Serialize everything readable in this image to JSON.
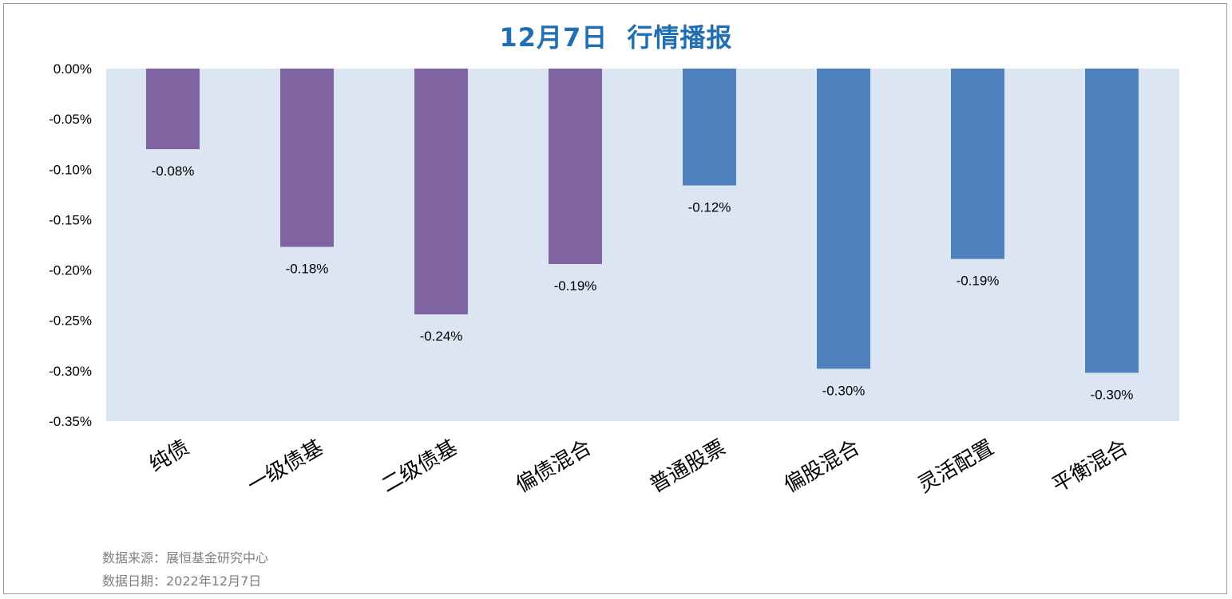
{
  "chart_data": {
    "type": "bar",
    "title": "12月7日  行情播报",
    "categories": [
      "纯债",
      "一级债基",
      "二级债基",
      "偏债混合",
      "普通股票",
      "偏股混合",
      "灵活配置",
      "平衡混合"
    ],
    "values": [
      -0.0008,
      -0.00177,
      -0.00244,
      -0.00194,
      -0.00116,
      -0.00298,
      -0.00189,
      -0.00302
    ],
    "value_labels": [
      "-0.08%",
      "-0.18%",
      "-0.24%",
      "-0.19%",
      "-0.12%",
      "-0.30%",
      "-0.19%",
      "-0.30%"
    ],
    "bar_colors": [
      "#8064a2",
      "#8064a2",
      "#8064a2",
      "#8064a2",
      "#4f81bd",
      "#4f81bd",
      "#4f81bd",
      "#4f81bd"
    ],
    "yticks": [
      "0.00%",
      "-0.05%",
      "-0.10%",
      "-0.15%",
      "-0.20%",
      "-0.25%",
      "-0.30%",
      "-0.35%"
    ],
    "ylim": [
      -0.0035,
      0
    ],
    "xlabel": "",
    "ylabel": "",
    "grid": false,
    "plot_background": "#dce6f2",
    "title_color": "#1f6fb2"
  },
  "footer": {
    "source": "数据来源：展恒基金研究中心",
    "date": "数据日期：2022年12月7日"
  }
}
